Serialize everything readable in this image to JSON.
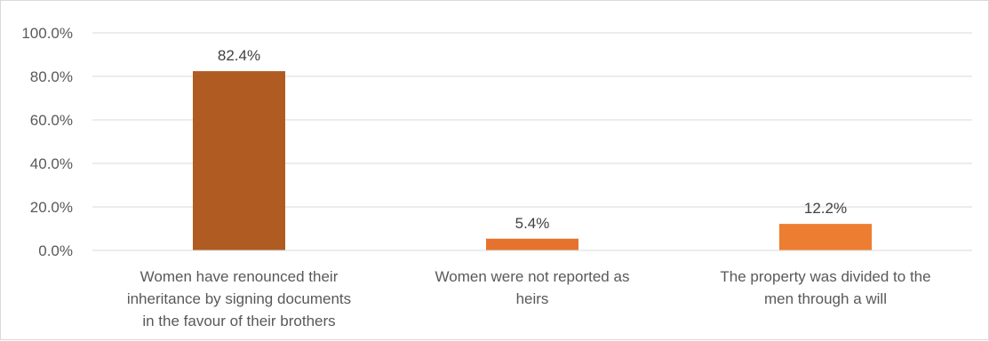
{
  "chart_data": {
    "type": "bar",
    "categories": [
      [
        "Women have renounced their",
        "inheritance by signing documents",
        "in the favour of their brothers"
      ],
      [
        "Women were not reported as",
        "heirs"
      ],
      [
        "The property was divided to the",
        "men through a will"
      ]
    ],
    "values": [
      82.4,
      5.4,
      12.2
    ],
    "data_labels": [
      "82.4%",
      "5.4%",
      "12.2%"
    ],
    "bar_colors": [
      "#b05b22",
      "#e6732d",
      "#ed7d31"
    ],
    "ylim": [
      0,
      100
    ],
    "yticks": [
      0,
      20,
      40,
      60,
      80,
      100
    ],
    "ytick_labels": [
      "0.0%",
      "20.0%",
      "40.0%",
      "60.0%",
      "80.0%",
      "100.0%"
    ],
    "grid": true,
    "gridline_color": "#d9d9d9",
    "legend": "none"
  }
}
